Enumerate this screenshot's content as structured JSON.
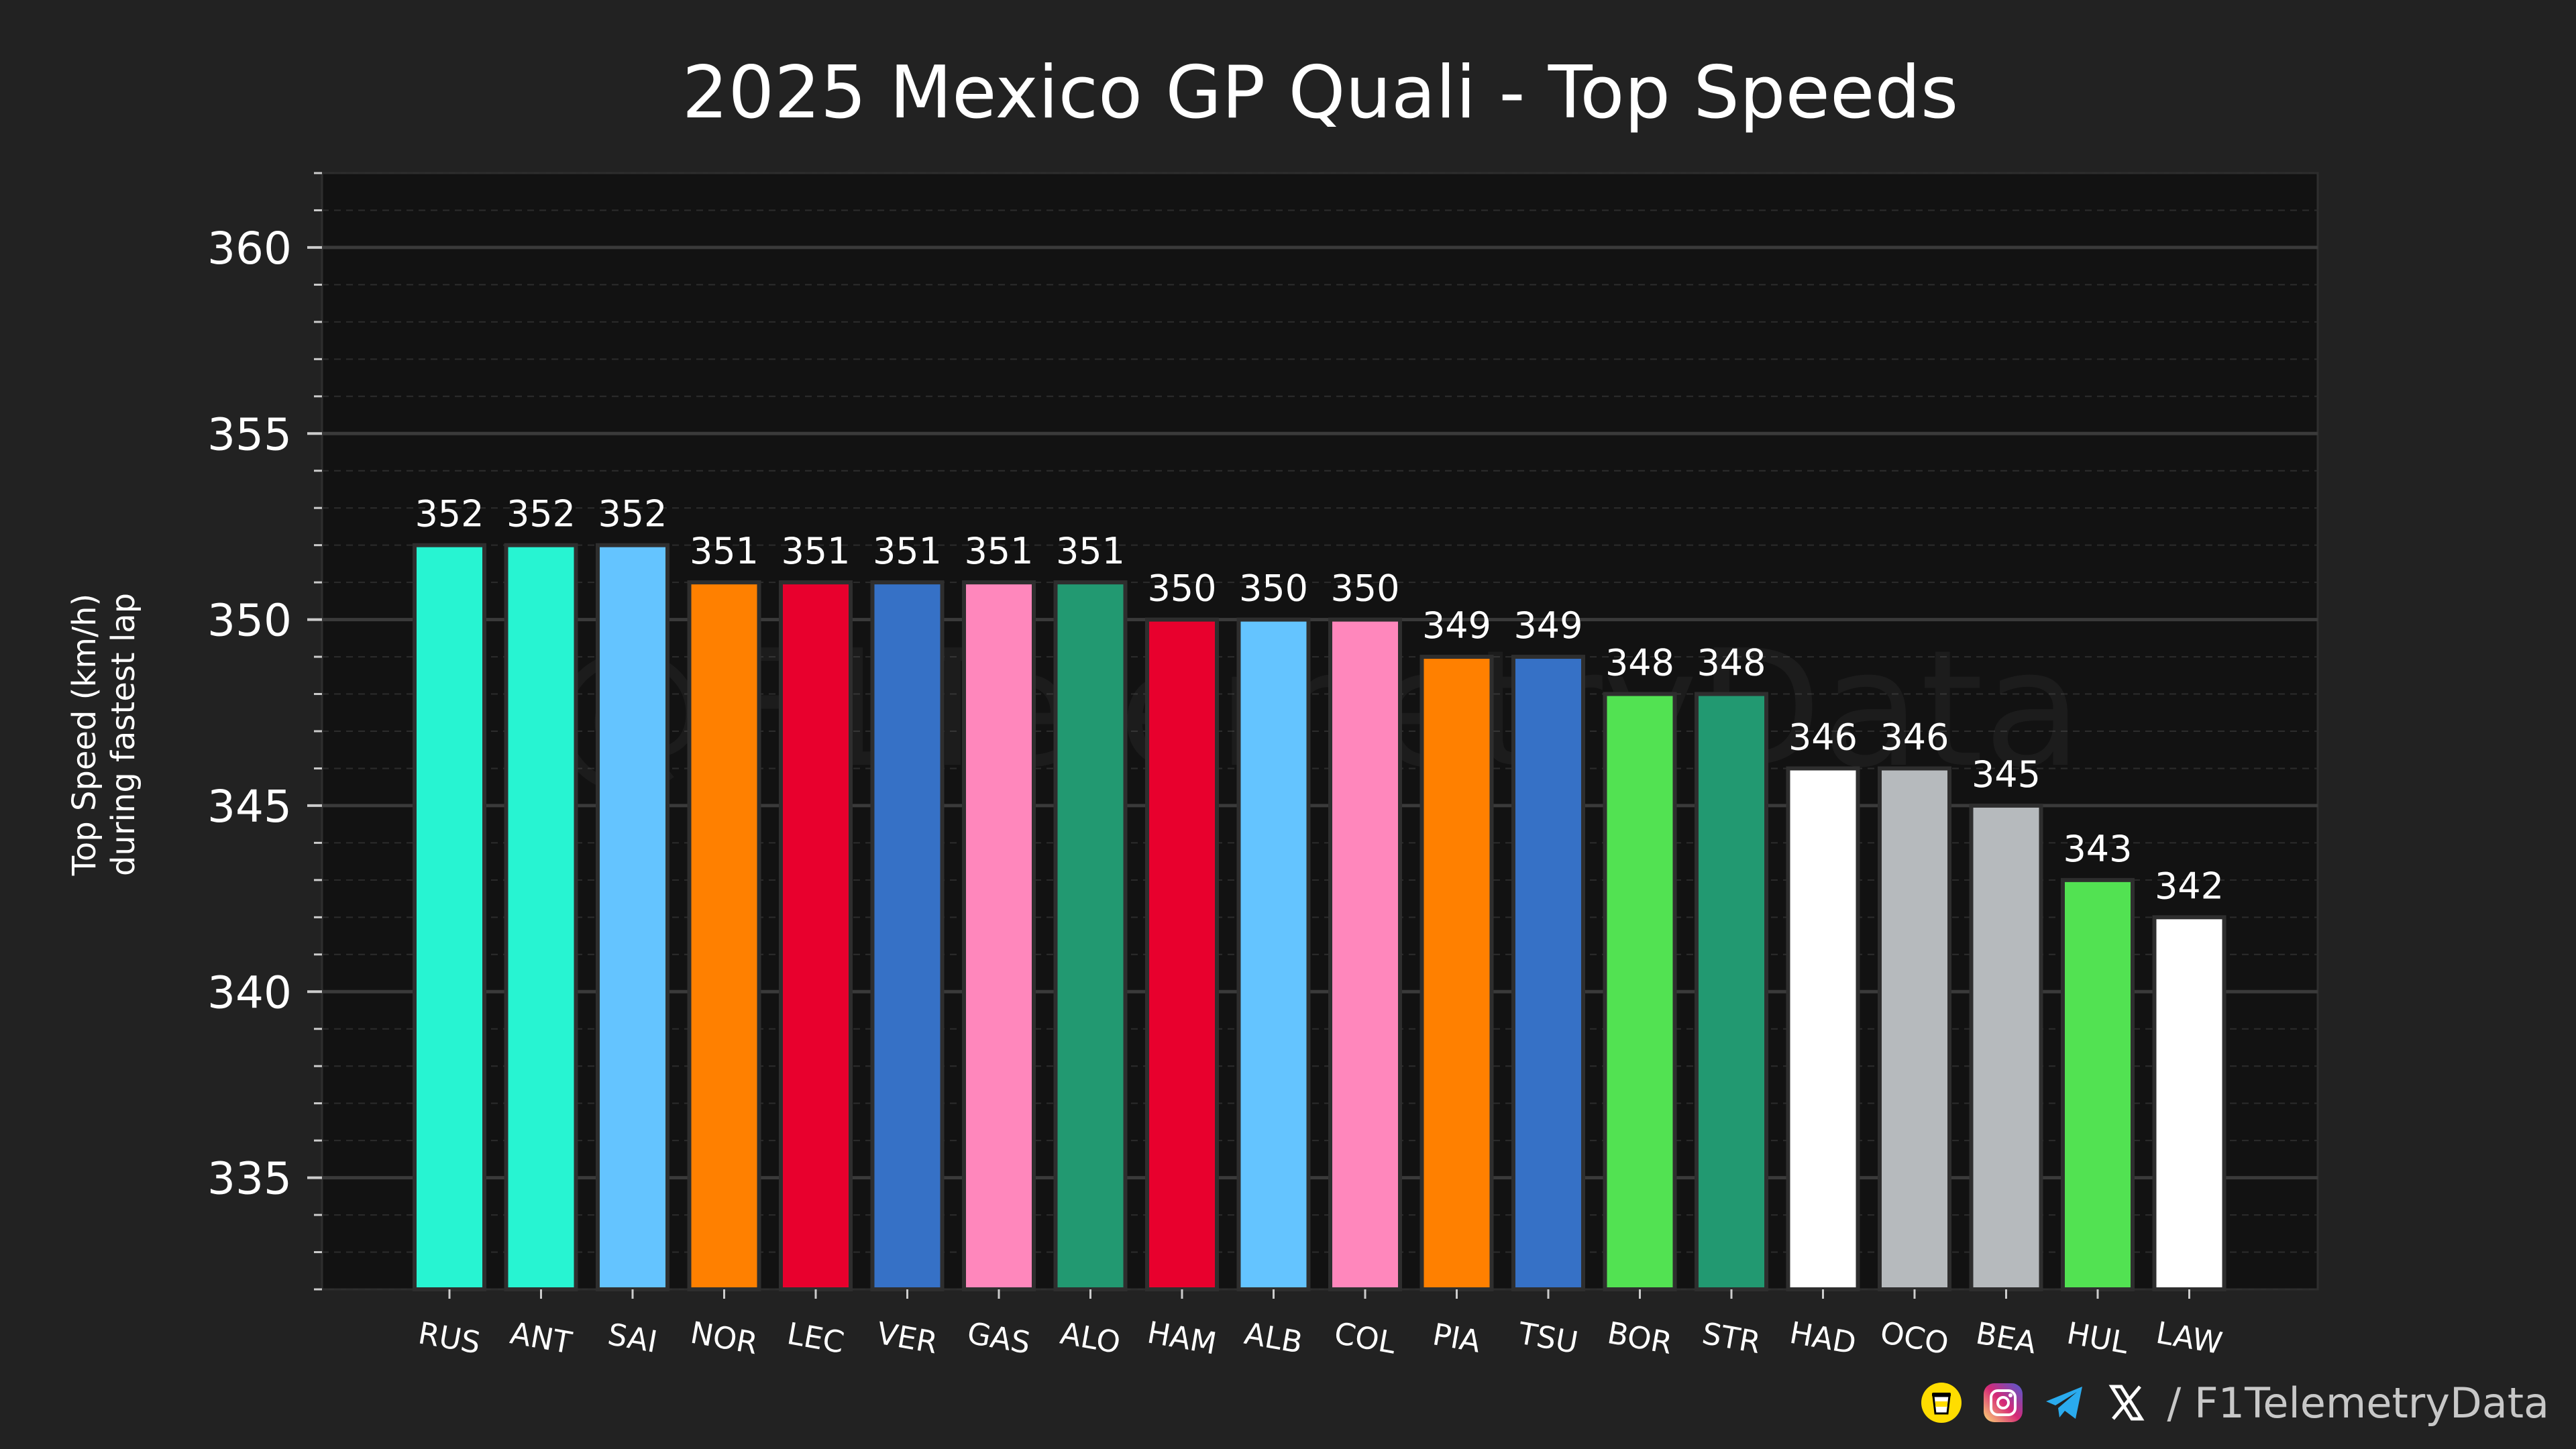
{
  "watermark": "@F1TelemetryData",
  "footer": {
    "separator": "/",
    "handle": "F1TelemetryData",
    "icons": [
      "coffee-cup-icon",
      "instagram-icon",
      "telegram-icon",
      "x-icon"
    ],
    "icon_colors": {
      "coffee": "#FFDD00",
      "instagram_start": "#FEDA75",
      "instagram_mid": "#D62976",
      "instagram_end": "#4F5BD5",
      "telegram": "#2AABEE",
      "x": "#FFFFFF"
    }
  },
  "chart_data": {
    "type": "bar",
    "title": "2025 Mexico GP Quali - Top Speeds",
    "xlabel": "",
    "ylabel": [
      "Top Speed (km/h)",
      "during fastest lap"
    ],
    "ylim": [
      332,
      362
    ],
    "yticks": [
      335,
      340,
      345,
      350,
      355,
      360
    ],
    "grid": true,
    "categories": [
      "RUS",
      "ANT",
      "SAI",
      "NOR",
      "LEC",
      "VER",
      "GAS",
      "ALO",
      "HAM",
      "ALB",
      "COL",
      "PIA",
      "TSU",
      "BOR",
      "STR",
      "HAD",
      "OCO",
      "BEA",
      "HUL",
      "LAW"
    ],
    "values": [
      352,
      352,
      352,
      351,
      351,
      351,
      351,
      351,
      350,
      350,
      350,
      349,
      349,
      348,
      348,
      346,
      346,
      345,
      343,
      342
    ],
    "colors": [
      "#27F4D2",
      "#27F4D2",
      "#64C4FF",
      "#FF8000",
      "#E8002D",
      "#3671C6",
      "#FF87BC",
      "#229971",
      "#E8002D",
      "#64C4FF",
      "#FF87BC",
      "#FF8000",
      "#3671C6",
      "#52E252",
      "#229971",
      "#FFFFFF",
      "#B6BABD",
      "#B6BABD",
      "#52E252",
      "#FFFFFF"
    ],
    "colors_theme": {
      "figure_bg": "#222222",
      "plot_bg": "#121212",
      "grid_major": "#3a3a3a",
      "grid_minor": "#2c2c2c",
      "bar_edge": "#2e2e2e",
      "text": "#FFFFFF"
    }
  }
}
